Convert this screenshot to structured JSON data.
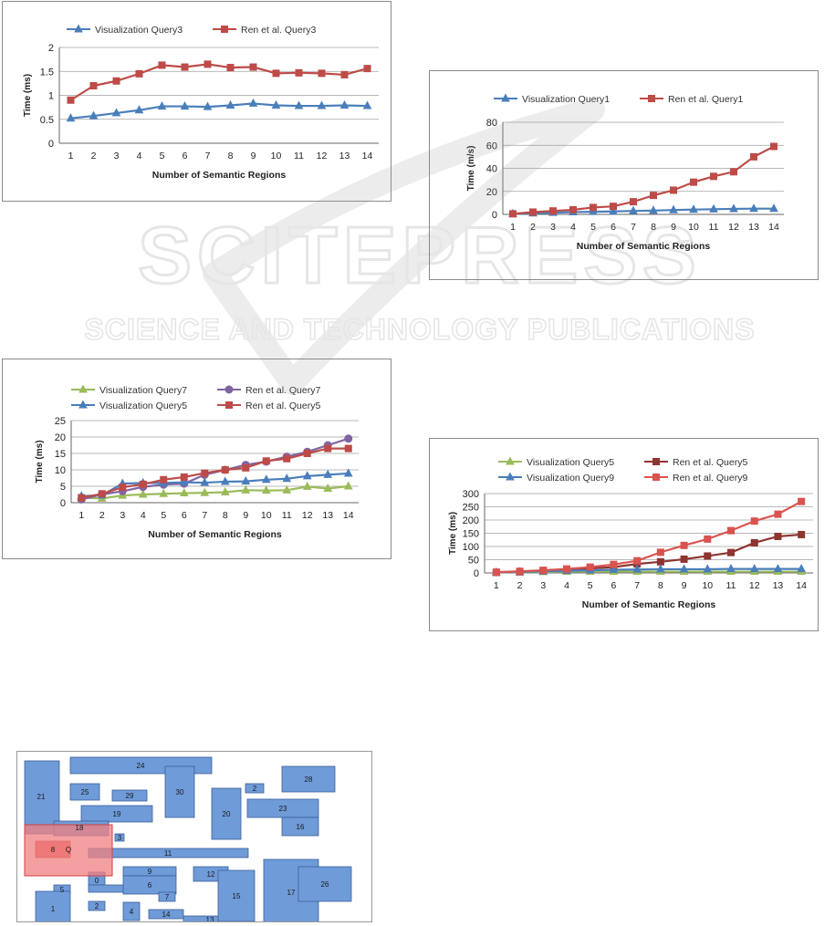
{
  "watermark": {
    "line1": "SCITEPRESS",
    "line2": "SCIENCE AND TECHNOLOGY PUBLICATIONS"
  },
  "charts": [
    {
      "id": "chart-query3",
      "chart_data": {
        "type": "line",
        "categories": [
          "1",
          "2",
          "3",
          "4",
          "5",
          "6",
          "7",
          "8",
          "9",
          "10",
          "11",
          "12",
          "13",
          "14"
        ],
        "series": [
          {
            "name": "Visualization Query3",
            "color": "#4a7ebb",
            "marker": "triangle",
            "values": [
              0.52,
              0.57,
              0.63,
              0.69,
              0.77,
              0.77,
              0.76,
              0.79,
              0.83,
              0.79,
              0.78,
              0.78,
              0.79,
              0.78
            ]
          },
          {
            "name": "Ren et al. Query3",
            "color": "#be4b48",
            "marker": "square",
            "values": [
              0.9,
              1.2,
              1.3,
              1.45,
              1.63,
              1.59,
              1.65,
              1.58,
              1.59,
              1.46,
              1.47,
              1.46,
              1.43,
              1.56
            ]
          }
        ],
        "xlabel": "Number of Semantic Regions",
        "ylabel": "Time (ms)",
        "ylim": [
          0,
          2
        ],
        "yticks": [
          "0",
          "0.5",
          "1",
          "1.5",
          "2"
        ],
        "ytick_values": [
          0,
          0.5,
          1,
          1.5,
          2
        ],
        "grid": true,
        "legend": "top"
      }
    },
    {
      "id": "chart-query1",
      "chart_data": {
        "type": "line",
        "categories": [
          "1",
          "2",
          "3",
          "4",
          "5",
          "6",
          "7",
          "8",
          "9",
          "10",
          "11",
          "12",
          "13",
          "14"
        ],
        "series": [
          {
            "name": "Visualization Query1",
            "color": "#4a7ebb",
            "marker": "triangle",
            "values": [
              0.5,
              1,
              1.5,
              2,
              2.3,
              2.6,
              3,
              3.3,
              3.8,
              4.2,
              4.5,
              4.8,
              5,
              5
            ]
          },
          {
            "name": "Ren et al. Query1",
            "color": "#be4b48",
            "marker": "square",
            "values": [
              0.5,
              2,
              3,
              4,
              6,
              7,
              11,
              16.5,
              21,
              28,
              33,
              37,
              50,
              59
            ]
          }
        ],
        "xlabel": "Number of Semantic Regions",
        "ylabel": "Time (m/s)",
        "ylim": [
          0,
          80
        ],
        "yticks": [
          "0",
          "20",
          "40",
          "60",
          "80"
        ],
        "ytick_values": [
          0,
          20,
          40,
          60,
          80
        ],
        "grid": true,
        "legend": "top"
      }
    },
    {
      "id": "chart-query7-5",
      "chart_data": {
        "type": "line",
        "categories": [
          "1",
          "2",
          "3",
          "4",
          "5",
          "6",
          "7",
          "8",
          "9",
          "10",
          "11",
          "12",
          "13",
          "14"
        ],
        "series": [
          {
            "name": "Visualization Query7",
            "color": "#9bbb59",
            "marker": "triangle",
            "values": [
              1.5,
              1.3,
              2.2,
              2.5,
              2.7,
              2.9,
              3,
              3.2,
              3.8,
              3.7,
              3.8,
              4.9,
              4.3,
              5
            ]
          },
          {
            "name": "Ren et al. Query7",
            "color": "#8064a2",
            "marker": "circle",
            "values": [
              1,
              2.5,
              3.5,
              4.8,
              5.5,
              5.8,
              8.5,
              10,
              11.5,
              12.5,
              14,
              15.5,
              17.5,
              19.5
            ]
          },
          {
            "name": "Visualization Query5",
            "color": "#4a7ebb",
            "marker": "triangle",
            "values": [
              2,
              2.3,
              5.8,
              6,
              6,
              6.2,
              6.1,
              6.4,
              6.5,
              7,
              7.3,
              8.1,
              8.5,
              8.9
            ]
          },
          {
            "name": "Ren et al. Query5",
            "color": "#be4b48",
            "marker": "square",
            "values": [
              1.5,
              2.7,
              4.7,
              5.6,
              7,
              7.8,
              9,
              10,
              10.6,
              12.7,
              13.4,
              15,
              16.5,
              16.5
            ]
          }
        ],
        "xlabel": "Number of Semantic Regions",
        "ylabel": "Time (ms)",
        "ylim": [
          0,
          25
        ],
        "yticks": [
          "0",
          "5",
          "10",
          "15",
          "20",
          "25"
        ],
        "ytick_values": [
          0,
          5,
          10,
          15,
          20,
          25
        ],
        "grid": true,
        "legend": "top"
      }
    },
    {
      "id": "chart-query5-9",
      "chart_data": {
        "type": "line",
        "categories": [
          "1",
          "2",
          "3",
          "4",
          "5",
          "6",
          "7",
          "8",
          "9",
          "10",
          "11",
          "12",
          "13",
          "14"
        ],
        "series": [
          {
            "name": "Visualization Query5",
            "color": "#9bbb59",
            "marker": "triangle",
            "values": [
              2,
              3,
              4,
              5,
              5,
              5,
              5,
              5,
              5,
              5,
              5,
              5,
              5,
              5
            ]
          },
          {
            "name": "Ren et al. Query5",
            "color": "#8e3532",
            "marker": "square",
            "values": [
              2,
              4,
              8,
              12,
              17,
              22,
              34,
              42,
              52,
              64,
              77,
              114,
              138,
              145
            ]
          },
          {
            "name": "Visualization Query9",
            "color": "#4a7ebb",
            "marker": "triangle",
            "values": [
              2,
              4,
              6,
              8,
              10,
              12,
              13,
              14,
              14,
              14,
              15,
              15,
              15,
              15
            ]
          },
          {
            "name": "Ren et al. Query9",
            "color": "#d9534f",
            "marker": "square",
            "values": [
              3,
              6,
              10,
              15,
              22,
              32,
              46,
              78,
              104,
              128,
              160,
              196,
              222,
              270
            ]
          }
        ],
        "xlabel": "Number of Semantic Regions",
        "ylabel": "Time (ms)",
        "ylim": [
          0,
          300
        ],
        "yticks": [
          "0",
          "50",
          "100",
          "150",
          "200",
          "250",
          "300"
        ],
        "ytick_values": [
          0,
          50,
          100,
          150,
          200,
          250,
          300
        ],
        "grid": true,
        "legend": "top"
      }
    }
  ],
  "region_map": {
    "regions": [
      "24",
      "21",
      "25",
      "29",
      "30",
      "20",
      "28",
      "23",
      "16",
      "19",
      "18",
      "11",
      "9",
      "12",
      "0",
      "6",
      "5",
      "1",
      "2",
      "4",
      "14",
      "13",
      "7",
      "15",
      "17",
      "26",
      "8"
    ],
    "marker_number": "3",
    "highlight_color": "#f28080",
    "region_color": "#6f9bd8"
  }
}
